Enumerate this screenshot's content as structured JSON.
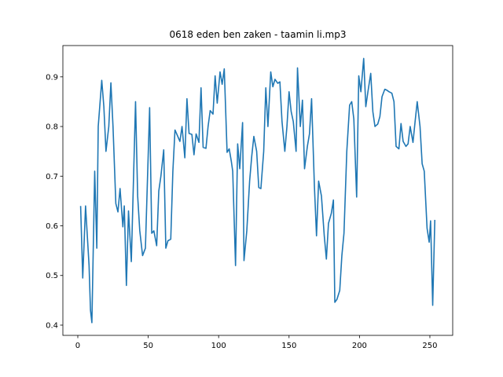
{
  "chart_data": {
    "type": "line",
    "title": "0618 eden ben zaken - taamin li.mp3",
    "x": [
      2,
      3.5,
      5.5,
      8,
      9,
      10,
      12,
      13.5,
      14.5,
      17,
      18.5,
      20,
      22,
      23.5,
      25,
      27,
      28.5,
      30,
      32,
      33,
      34.5,
      36,
      38,
      41,
      42.5,
      44,
      46,
      48,
      51,
      52.5,
      54,
      56,
      57.5,
      59,
      61,
      62.5,
      64,
      66,
      67.5,
      69,
      71,
      72.5,
      74,
      76,
      77.5,
      79,
      81,
      82.5,
      84,
      86,
      87.5,
      89,
      91,
      92.5,
      94,
      96,
      97.5,
      99,
      101,
      102.5,
      104,
      106,
      107.5,
      109,
      110,
      112,
      113.5,
      115,
      117,
      118,
      120,
      122,
      123.5,
      125,
      127,
      128.5,
      130,
      132,
      133.5,
      135,
      137,
      138.5,
      140,
      142,
      143.5,
      145,
      147,
      148.5,
      150,
      151.5,
      153,
      155,
      156,
      158,
      159.5,
      161,
      163,
      164.5,
      166,
      168,
      169.5,
      171,
      173,
      175,
      176.5,
      178,
      180,
      181.5,
      182.5,
      184,
      186,
      187.5,
      189,
      191,
      193,
      194.5,
      196,
      198,
      199.5,
      201,
      203,
      204.5,
      206,
      208,
      209.5,
      211,
      213,
      214.5,
      216,
      218,
      219.5,
      221,
      223,
      224.5,
      226,
      228,
      229.5,
      231,
      233,
      234.5,
      236,
      238,
      239.5,
      241,
      243,
      244.5,
      246,
      248,
      249.5,
      250.5,
      252,
      253.5
    ],
    "series": [
      {
        "color": "#1f77b4",
        "values": [
          0.64,
          0.495,
          0.64,
          0.52,
          0.43,
          0.405,
          0.71,
          0.555,
          0.8,
          0.893,
          0.84,
          0.75,
          0.8,
          0.888,
          0.8,
          0.645,
          0.628,
          0.675,
          0.598,
          0.64,
          0.48,
          0.63,
          0.528,
          0.85,
          0.66,
          0.59,
          0.54,
          0.555,
          0.838,
          0.585,
          0.59,
          0.56,
          0.67,
          0.7,
          0.753,
          0.555,
          0.57,
          0.573,
          0.71,
          0.793,
          0.78,
          0.77,
          0.8,
          0.737,
          0.856,
          0.786,
          0.784,
          0.743,
          0.785,
          0.768,
          0.878,
          0.758,
          0.756,
          0.8,
          0.832,
          0.825,
          0.902,
          0.847,
          0.91,
          0.885,
          0.916,
          0.748,
          0.755,
          0.73,
          0.71,
          0.52,
          0.765,
          0.715,
          0.808,
          0.53,
          0.59,
          0.69,
          0.74,
          0.78,
          0.75,
          0.677,
          0.675,
          0.75,
          0.878,
          0.8,
          0.91,
          0.88,
          0.895,
          0.887,
          0.89,
          0.81,
          0.75,
          0.8,
          0.87,
          0.83,
          0.81,
          0.75,
          0.918,
          0.8,
          0.853,
          0.715,
          0.76,
          0.785,
          0.856,
          0.68,
          0.58,
          0.69,
          0.66,
          0.58,
          0.533,
          0.605,
          0.625,
          0.652,
          0.446,
          0.452,
          0.47,
          0.54,
          0.585,
          0.75,
          0.843,
          0.85,
          0.815,
          0.658,
          0.902,
          0.87,
          0.937,
          0.84,
          0.87,
          0.907,
          0.83,
          0.8,
          0.805,
          0.82,
          0.86,
          0.875,
          0.873,
          0.87,
          0.867,
          0.85,
          0.76,
          0.755,
          0.806,
          0.77,
          0.76,
          0.765,
          0.8,
          0.768,
          0.81,
          0.85,
          0.8,
          0.725,
          0.71,
          0.595,
          0.567,
          0.61,
          0.44,
          0.612
        ]
      }
    ],
    "xlim": [
      -10.6,
      266.2
    ],
    "xticks": [
      0,
      50,
      100,
      150,
      200,
      250
    ],
    "ylim": [
      0.3794,
      0.963
    ],
    "yticks": [
      0.4,
      0.5,
      0.6,
      0.7,
      0.8,
      0.9
    ]
  }
}
